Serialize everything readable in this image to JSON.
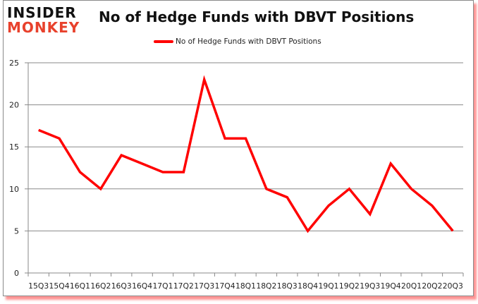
{
  "header": {
    "logo_line1": "INSIDER",
    "logo_line2": "MONKEY",
    "title": "No of Hedge Funds with DBVT Positions"
  },
  "legend": {
    "label": "No of Hedge Funds with DBVT Positions",
    "color": "#ff0000"
  },
  "colors": {
    "line": "#ff0000",
    "grid": "#8a8a8a",
    "logo_accent": "#e8412c",
    "frame_shadow": "#ff3c3c"
  },
  "chart_data": {
    "type": "line",
    "title": "No of Hedge Funds with DBVT Positions",
    "xlabel": "",
    "ylabel": "",
    "categories": [
      "15Q3",
      "15Q4",
      "16Q1",
      "16Q2",
      "16Q3",
      "16Q4",
      "17Q1",
      "17Q2",
      "17Q3",
      "17Q4",
      "18Q1",
      "18Q2",
      "18Q3",
      "18Q4",
      "19Q1",
      "19Q2",
      "19Q3",
      "19Q4",
      "20Q1",
      "20Q2",
      "20Q3"
    ],
    "series": [
      {
        "name": "No of Hedge Funds with DBVT Positions",
        "values": [
          17,
          16,
          12,
          10,
          14,
          13,
          12,
          12,
          23,
          16,
          16,
          10,
          9,
          5,
          8,
          10,
          7,
          13,
          10,
          8,
          5
        ]
      }
    ],
    "ylim": [
      0,
      25
    ],
    "yticks": [
      0,
      5,
      10,
      15,
      20,
      25
    ],
    "grid": true,
    "legend_position": "top"
  }
}
